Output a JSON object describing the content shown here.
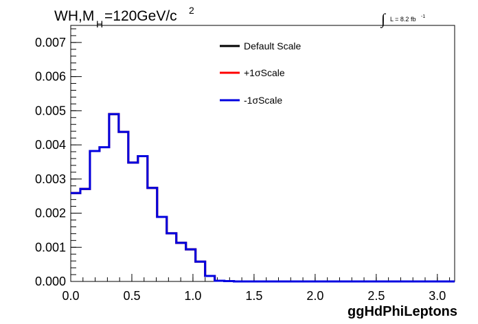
{
  "chart_data": {
    "type": "line",
    "title_main": "WH,M",
    "title_sub": "H",
    "title_rest": "=120GeV/c",
    "title_sup": "2",
    "lumi_label": "L = 8.2 fb",
    "lumi_sup": "-1",
    "integral_symbol": "∫",
    "xlabel": "ggHdPhiLeptons",
    "xlim": [
      0,
      3.14159
    ],
    "ylim": [
      0,
      0.0075
    ],
    "x_ticks": [
      0.0,
      0.5,
      1.0,
      1.5,
      2.0,
      2.5,
      3.0
    ],
    "x_tick_labels": [
      "0.0",
      "0.5",
      "1.0",
      "1.5",
      "2.0",
      "2.5",
      "3.0"
    ],
    "y_ticks": [
      0.0,
      0.001,
      0.002,
      0.003,
      0.004,
      0.005,
      0.006,
      0.007
    ],
    "y_tick_labels": [
      "0.000",
      "0.001",
      "0.002",
      "0.003",
      "0.004",
      "0.005",
      "0.006",
      "0.007"
    ],
    "bin_edges": [
      0.0,
      0.0785,
      0.1571,
      0.2356,
      0.3142,
      0.3927,
      0.4712,
      0.5498,
      0.6283,
      0.7069,
      0.7854,
      0.8639,
      0.9425,
      1.021,
      1.0996,
      1.1781,
      1.2566,
      1.3352,
      1.4137,
      1.4923,
      1.5708,
      1.6493,
      1.7279,
      1.8064,
      1.885,
      1.9635,
      2.042,
      2.1206,
      2.1991,
      2.2777,
      2.3562,
      2.4347,
      2.5133,
      2.5918,
      2.6704,
      2.7489,
      2.8274,
      2.906,
      2.9845,
      3.0631,
      3.1416
    ],
    "series": [
      {
        "name": "Default Scale",
        "color": "#000000",
        "values": [
          0.00259,
          0.00271,
          0.00382,
          0.00393,
          0.0049,
          0.00438,
          0.00348,
          0.00367,
          0.00274,
          0.00189,
          0.00141,
          0.00113,
          0.00094,
          0.00058,
          0.00016,
          2e-05,
          1e-05,
          0.0,
          0.0,
          0.0,
          0.0,
          0.0,
          0.0,
          0.0,
          0.0,
          0.0,
          0.0,
          0.0,
          0.0,
          0.0,
          0.0,
          0.0,
          0.0,
          0.0,
          0.0,
          0.0,
          0.0,
          0.0,
          0.0,
          0.0
        ]
      },
      {
        "name": "+1σScale",
        "color": "#ff0000",
        "values": [
          0.00259,
          0.00271,
          0.00382,
          0.00393,
          0.0049,
          0.00438,
          0.00348,
          0.00367,
          0.00274,
          0.00189,
          0.00141,
          0.00113,
          0.00094,
          0.00058,
          0.00016,
          2e-05,
          1e-05,
          0.0,
          0.0,
          0.0,
          0.0,
          0.0,
          0.0,
          0.0,
          0.0,
          0.0,
          0.0,
          0.0,
          0.0,
          0.0,
          0.0,
          0.0,
          0.0,
          0.0,
          0.0,
          0.0,
          0.0,
          0.0,
          0.0,
          0.0
        ]
      },
      {
        "name": "-1σScale",
        "color": "#0000e0",
        "values": [
          0.00259,
          0.00271,
          0.00382,
          0.00393,
          0.0049,
          0.00438,
          0.00348,
          0.00367,
          0.00274,
          0.00189,
          0.00141,
          0.00113,
          0.00094,
          0.00058,
          0.00016,
          2e-05,
          1e-05,
          0.0,
          0.0,
          0.0,
          0.0,
          0.0,
          0.0,
          0.0,
          0.0,
          0.0,
          0.0,
          0.0,
          0.0,
          0.0,
          0.0,
          0.0,
          0.0,
          0.0,
          0.0,
          0.0,
          0.0,
          0.0,
          0.0,
          0.0
        ]
      }
    ],
    "legend_position": "top-center",
    "grid": false
  }
}
